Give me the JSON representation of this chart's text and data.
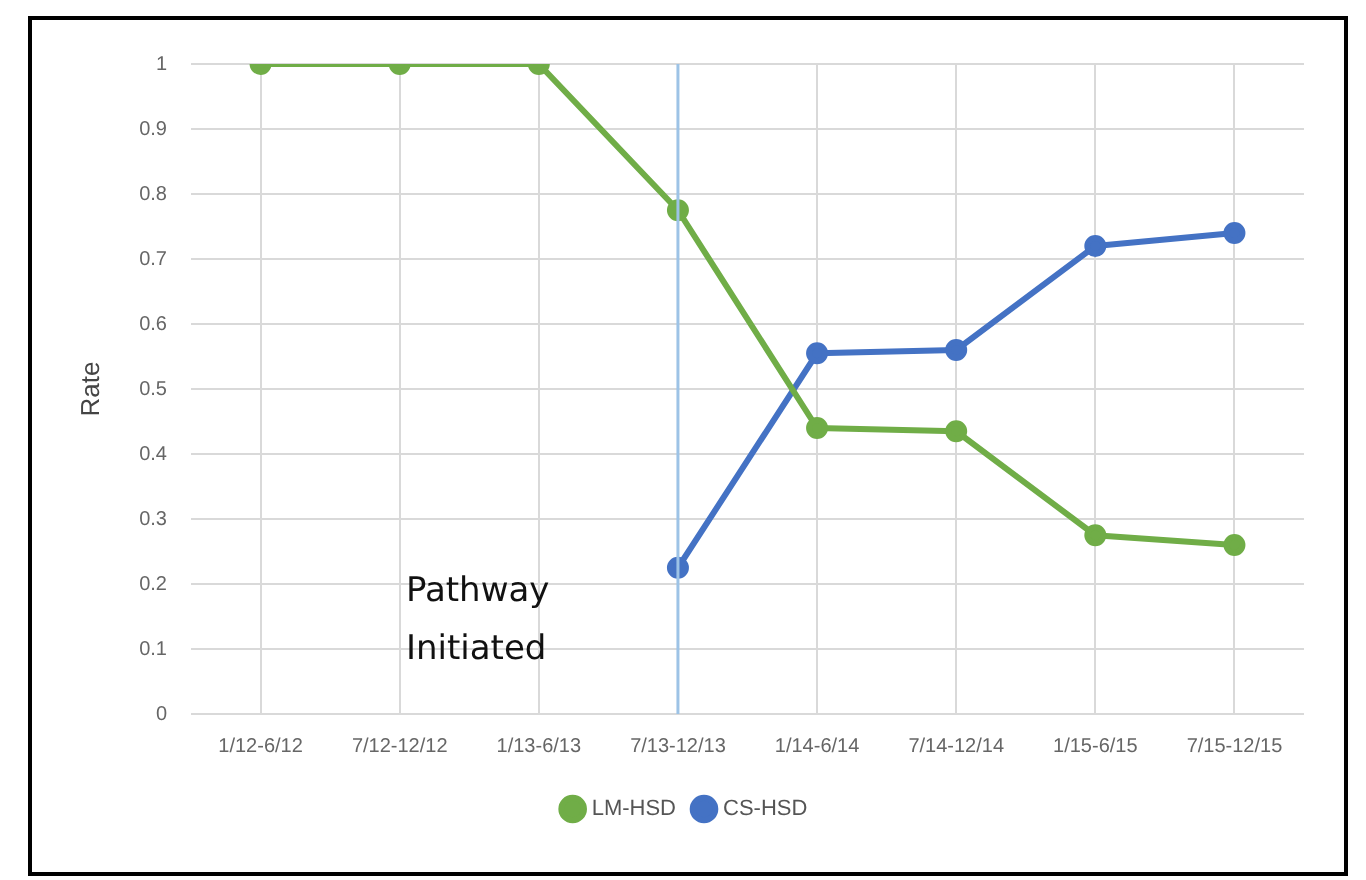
{
  "chart_data": {
    "type": "line",
    "ylabel": "Rate",
    "categories": [
      "1/12-6/12",
      "7/12-12/12",
      "1/13-6/13",
      "7/13-12/13",
      "1/14-6/14",
      "7/14-12/14",
      "1/15-6/15",
      "7/15-12/15"
    ],
    "series": [
      {
        "name": "LM-HSD",
        "color": "#70ad47",
        "values": [
          1,
          1,
          1,
          0.775,
          0.44,
          0.435,
          0.275,
          0.26
        ]
      },
      {
        "name": "CS-HSD",
        "color": "#4472c4",
        "values": [
          null,
          null,
          null,
          0.225,
          0.555,
          0.56,
          0.72,
          0.74
        ]
      }
    ],
    "ylim": [
      0,
      1
    ],
    "yticks": [
      0,
      0.1,
      0.2,
      0.3,
      0.4,
      0.5,
      0.6,
      0.7,
      0.8,
      0.9,
      1
    ],
    "grid": true,
    "legend": "bottom",
    "marker": "circle",
    "line_style": "solid",
    "ref_lines": [
      {
        "axis": "x",
        "value": "7/13-12/13",
        "color": "#9dc3e6"
      }
    ],
    "annotations": [
      "Pathway Initiated"
    ]
  }
}
